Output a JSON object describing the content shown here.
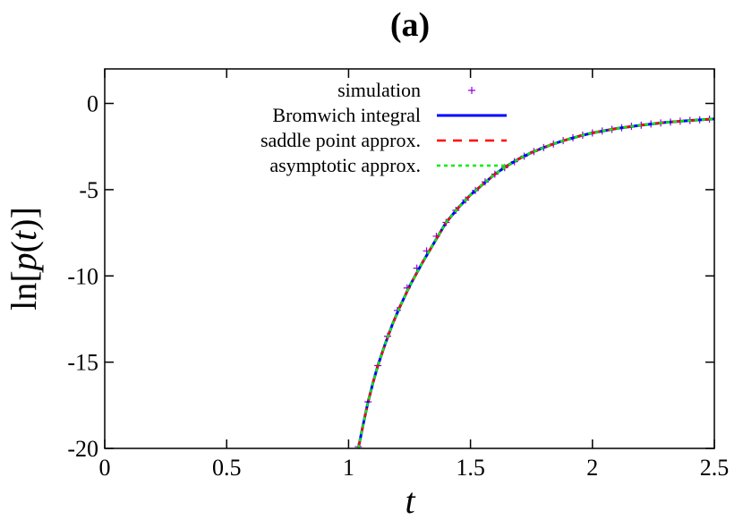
{
  "chart_data": {
    "type": "line",
    "title": "(a)",
    "xlabel": "t",
    "ylabel": "ln[p(t)]",
    "xlim": [
      0,
      2.5
    ],
    "ylim": [
      -20,
      2
    ],
    "xticks": [
      0,
      0.5,
      1,
      1.5,
      2,
      2.5
    ],
    "xtick_labels": [
      "0",
      "0.5",
      "1",
      "1.5",
      "2",
      "2.5"
    ],
    "yticks": [
      -20,
      -15,
      -10,
      -5,
      0
    ],
    "ytick_labels": [
      "-20",
      "-15",
      "-10",
      "-5",
      "0"
    ],
    "grid": false,
    "legend_position": "top-left",
    "series": [
      {
        "name": "simulation",
        "style": "markers",
        "marker": "+",
        "color": "#9400d3",
        "x": [
          1.04,
          1.08,
          1.12,
          1.16,
          1.2,
          1.24,
          1.28,
          1.32,
          1.36,
          1.4,
          1.44,
          1.48,
          1.52,
          1.56,
          1.6,
          1.64,
          1.68,
          1.72,
          1.76,
          1.8,
          1.84,
          1.88,
          1.92,
          1.96,
          2.0,
          2.04,
          2.08,
          2.12,
          2.16,
          2.2,
          2.24,
          2.28,
          2.32,
          2.36,
          2.4,
          2.44,
          2.48
        ],
        "y": [
          -19.9,
          -17.3,
          -15.2,
          -13.5,
          -12.0,
          -10.7,
          -9.55,
          -8.55,
          -7.7,
          -6.9,
          -6.2,
          -5.6,
          -5.05,
          -4.55,
          -4.1,
          -3.72,
          -3.38,
          -3.06,
          -2.79,
          -2.56,
          -2.35,
          -2.16,
          -1.99,
          -1.84,
          -1.71,
          -1.6,
          -1.5,
          -1.41,
          -1.33,
          -1.26,
          -1.19,
          -1.13,
          -1.08,
          -1.03,
          -0.99,
          -0.95,
          -0.91
        ]
      },
      {
        "name": "Bromwich integral",
        "style": "solid",
        "color": "#0000ff",
        "x": [
          1.04,
          1.06,
          1.08,
          1.1,
          1.12,
          1.15,
          1.18,
          1.21,
          1.25,
          1.3,
          1.35,
          1.4,
          1.45,
          1.5,
          1.55,
          1.6,
          1.65,
          1.7,
          1.75,
          1.8,
          1.85,
          1.9,
          1.95,
          2.0,
          2.1,
          2.2,
          2.3,
          2.4,
          2.5
        ],
        "y": [
          -20.0,
          -18.6,
          -17.3,
          -16.2,
          -15.2,
          -13.95,
          -12.8,
          -11.8,
          -10.6,
          -9.3,
          -8.1,
          -6.9,
          -6.05,
          -5.3,
          -4.7,
          -4.1,
          -3.62,
          -3.2,
          -2.85,
          -2.56,
          -2.3,
          -2.08,
          -1.88,
          -1.71,
          -1.45,
          -1.26,
          -1.1,
          -0.99,
          -0.9
        ]
      },
      {
        "name": "saddle point approx.",
        "style": "dashed",
        "color": "#ff0000",
        "x": [
          1.04,
          1.06,
          1.08,
          1.1,
          1.12,
          1.15,
          1.18,
          1.21,
          1.25,
          1.3,
          1.35,
          1.4,
          1.45,
          1.5,
          1.55,
          1.6,
          1.65,
          1.7,
          1.75,
          1.8,
          1.85,
          1.9,
          1.95,
          2.0,
          2.1,
          2.2,
          2.3,
          2.4,
          2.5
        ],
        "y": [
          -20.0,
          -18.6,
          -17.3,
          -16.2,
          -15.2,
          -13.95,
          -12.8,
          -11.8,
          -10.6,
          -9.3,
          -8.1,
          -6.9,
          -6.05,
          -5.3,
          -4.7,
          -4.1,
          -3.62,
          -3.2,
          -2.85,
          -2.56,
          -2.3,
          -2.08,
          -1.88,
          -1.71,
          -1.45,
          -1.26,
          -1.1,
          -0.99,
          -0.9
        ]
      },
      {
        "name": "asymptotic approx.",
        "style": "dotted",
        "color": "#00ee00",
        "x": [
          1.04,
          1.06,
          1.08,
          1.1,
          1.12,
          1.15,
          1.18,
          1.21,
          1.25,
          1.3,
          1.35,
          1.4,
          1.45,
          1.5,
          1.55,
          1.6,
          1.65,
          1.7,
          1.75,
          1.8,
          1.85,
          1.9,
          1.95,
          2.0,
          2.1,
          2.2,
          2.3,
          2.4,
          2.5
        ],
        "y": [
          -20.0,
          -18.6,
          -17.3,
          -16.2,
          -15.2,
          -13.95,
          -12.8,
          -11.8,
          -10.6,
          -9.3,
          -8.1,
          -6.9,
          -6.05,
          -5.3,
          -4.7,
          -4.1,
          -3.62,
          -3.2,
          -2.85,
          -2.56,
          -2.3,
          -2.08,
          -1.88,
          -1.71,
          -1.45,
          -1.26,
          -1.1,
          -0.99,
          -0.9
        ]
      }
    ]
  }
}
